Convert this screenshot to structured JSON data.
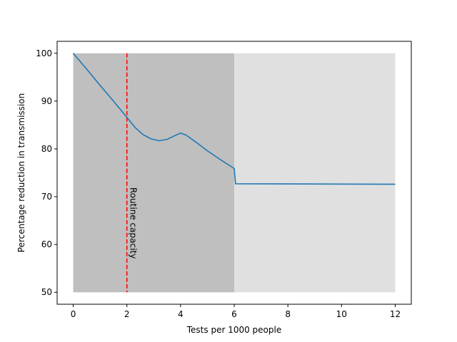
{
  "chart_data": {
    "type": "line",
    "title": "",
    "xlabel": "Tests per 1000 people",
    "ylabel": "Percentage reduction in transmission",
    "xlim": [
      -0.6,
      12.6
    ],
    "ylim": [
      47.5,
      102.5
    ],
    "xticks": [
      0,
      2,
      4,
      6,
      8,
      10,
      12
    ],
    "yticks": [
      50,
      60,
      70,
      80,
      90,
      100
    ],
    "grid": false,
    "legend": "none",
    "shaded_regions": [
      {
        "x": [
          0,
          6
        ],
        "y": [
          50,
          100
        ],
        "color": "#bfbfbf"
      },
      {
        "x": [
          6,
          12
        ],
        "y": [
          50,
          100
        ],
        "color": "#e0e0e0"
      }
    ],
    "vline": {
      "x": 2,
      "color": "#ff0000",
      "style": "dashed",
      "label": "Routine capacity"
    },
    "series": [
      {
        "color": "#1f77b4",
        "x": [
          0,
          0.5,
          1.0,
          1.5,
          2.0,
          2.3,
          2.6,
          2.9,
          3.2,
          3.5,
          3.8,
          4.0,
          4.2,
          4.6,
          5.0,
          5.5,
          6.0,
          6.05,
          12
        ],
        "y": [
          100,
          96.7,
          93.3,
          90.0,
          86.6,
          84.5,
          83.0,
          82.1,
          81.7,
          82.0,
          82.8,
          83.3,
          82.9,
          81.3,
          79.6,
          77.7,
          75.9,
          72.7,
          72.6
        ]
      }
    ]
  }
}
